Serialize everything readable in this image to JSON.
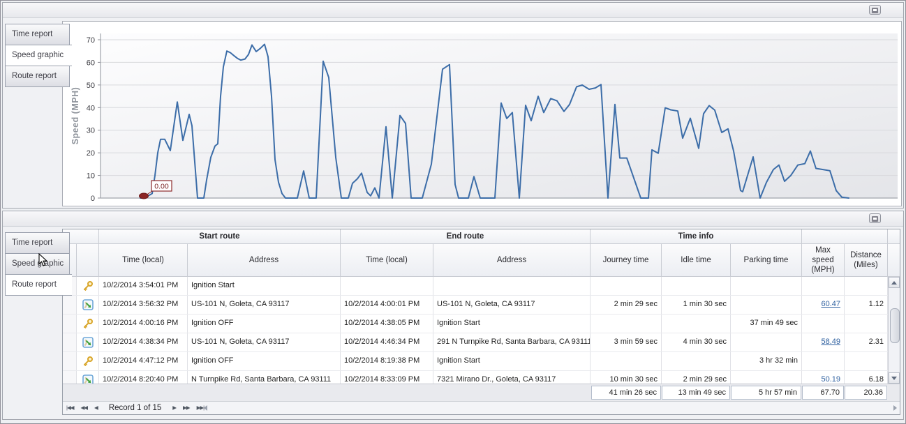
{
  "tabs": [
    "Time report",
    "Speed graphic",
    "Route report"
  ],
  "top_panel": {
    "active_tab": "Speed graphic"
  },
  "bottom_panel": {
    "active_tab": "Route report"
  },
  "panel_button_color": "#82828c",
  "chart_data": {
    "type": "line",
    "title": "",
    "ylabel": "Speed (MPH)",
    "xlabel": "",
    "yticks": [
      0,
      10,
      20,
      30,
      40,
      50,
      60,
      70
    ],
    "ylim": [
      0,
      72
    ],
    "grid": "horizontal",
    "legend": "none",
    "line_color": "#3c6da8",
    "x_unit": "screen px along time axis (plot spans 143-1290)",
    "annotation": {
      "text": "0.00",
      "color": "#7a2222",
      "border": "#8b2a2a",
      "marker_color": "#8b2525"
    },
    "points": [
      [
        200,
        0
      ],
      [
        206,
        0
      ],
      [
        217,
        2
      ],
      [
        221,
        10
      ],
      [
        225,
        20
      ],
      [
        229,
        26
      ],
      [
        235,
        26
      ],
      [
        243,
        21
      ],
      [
        253,
        42.5
      ],
      [
        261,
        25.5
      ],
      [
        270,
        37
      ],
      [
        274,
        32
      ],
      [
        282,
        0
      ],
      [
        291,
        0
      ],
      [
        295,
        8
      ],
      [
        301,
        18
      ],
      [
        307,
        23
      ],
      [
        311,
        24
      ],
      [
        315,
        45
      ],
      [
        319,
        58
      ],
      [
        324,
        65
      ],
      [
        329,
        64.3
      ],
      [
        334,
        63
      ],
      [
        339,
        61.8
      ],
      [
        344,
        61
      ],
      [
        350,
        61.5
      ],
      [
        355,
        63.5
      ],
      [
        360,
        67.7
      ],
      [
        366,
        64.8
      ],
      [
        372,
        66.2
      ],
      [
        378,
        68
      ],
      [
        383,
        62.5
      ],
      [
        388,
        45
      ],
      [
        393,
        17
      ],
      [
        398,
        7
      ],
      [
        403,
        2
      ],
      [
        408,
        0
      ],
      [
        425,
        0
      ],
      [
        434,
        12
      ],
      [
        442,
        0
      ],
      [
        452,
        0
      ],
      [
        462,
        60.5
      ],
      [
        470,
        53.3
      ],
      [
        480,
        18
      ],
      [
        488,
        0
      ],
      [
        498,
        0
      ],
      [
        504,
        6.5
      ],
      [
        511,
        8.5
      ],
      [
        517,
        11
      ],
      [
        525,
        2.5
      ],
      [
        530,
        1
      ],
      [
        536,
        4.5
      ],
      [
        542,
        0
      ],
      [
        552,
        31.5
      ],
      [
        561,
        0
      ],
      [
        572,
        36.5
      ],
      [
        580,
        33
      ],
      [
        588,
        0
      ],
      [
        604,
        0
      ],
      [
        617,
        15
      ],
      [
        633,
        57
      ],
      [
        643,
        59
      ],
      [
        651,
        6
      ],
      [
        656,
        0
      ],
      [
        670,
        0
      ],
      [
        678,
        9.5
      ],
      [
        687,
        0
      ],
      [
        708,
        0
      ],
      [
        717,
        42
      ],
      [
        725,
        35.2
      ],
      [
        733,
        37.8
      ],
      [
        743,
        0
      ],
      [
        752,
        41
      ],
      [
        760,
        34.2
      ],
      [
        770,
        45
      ],
      [
        778,
        37.8
      ],
      [
        788,
        44
      ],
      [
        797,
        43
      ],
      [
        807,
        38.3
      ],
      [
        815,
        41.4
      ],
      [
        825,
        49.2
      ],
      [
        833,
        50
      ],
      [
        843,
        48.1
      ],
      [
        852,
        48.7
      ],
      [
        860,
        50.2
      ],
      [
        870,
        0
      ],
      [
        880,
        41.4
      ],
      [
        887,
        17.7
      ],
      [
        897,
        17.7
      ],
      [
        917,
        0
      ],
      [
        928,
        0
      ],
      [
        933,
        21.3
      ],
      [
        942,
        19.8
      ],
      [
        952,
        39.9
      ],
      [
        960,
        39
      ],
      [
        970,
        38.5
      ],
      [
        977,
        26.5
      ],
      [
        988,
        35.3
      ],
      [
        1000,
        22
      ],
      [
        1007,
        37.3
      ],
      [
        1015,
        40.9
      ],
      [
        1023,
        38.9
      ],
      [
        1033,
        29
      ],
      [
        1042,
        30.6
      ],
      [
        1050,
        20.8
      ],
      [
        1060,
        3.3
      ],
      [
        1063,
        2.8
      ],
      [
        1078,
        18.2
      ],
      [
        1088,
        0
      ],
      [
        1097,
        6.9
      ],
      [
        1107,
        12.6
      ],
      [
        1115,
        14.6
      ],
      [
        1123,
        7.4
      ],
      [
        1132,
        10
      ],
      [
        1142,
        14.6
      ],
      [
        1152,
        15.2
      ],
      [
        1160,
        20.8
      ],
      [
        1168,
        13.1
      ],
      [
        1178,
        12.6
      ],
      [
        1188,
        12.1
      ],
      [
        1197,
        3.3
      ],
      [
        1205,
        0.4
      ],
      [
        1215,
        0
      ]
    ]
  },
  "grid": {
    "column_groups": [
      {
        "label": ""
      },
      {
        "label": "Start route"
      },
      {
        "label": "End route"
      },
      {
        "label": "Time info"
      },
      {
        "label": ""
      }
    ],
    "columns": [
      {
        "label": ""
      },
      {
        "label": ""
      },
      {
        "label": "Time (local)"
      },
      {
        "label": "Address"
      },
      {
        "label": "Time (local)"
      },
      {
        "label": "Address"
      },
      {
        "label": "Journey time"
      },
      {
        "label": "Idle time"
      },
      {
        "label": "Parking time"
      },
      {
        "label": "Max speed (MPH)"
      },
      {
        "label": "Distance (Miles)"
      }
    ],
    "rows": [
      {
        "icon": "key-icon",
        "start_time": "10/2/2014 3:54:01 PM",
        "start_address": "Ignition Start",
        "end_time": "",
        "end_address": "",
        "journey_time": "",
        "idle_time": "",
        "parking_time": "",
        "max_speed": "",
        "distance": ""
      },
      {
        "icon": "route-icon",
        "start_time": "10/2/2014 3:56:32 PM",
        "start_address": "US-101 N, Goleta, CA 93117",
        "end_time": "10/2/2014 4:00:01 PM",
        "end_address": "US-101 N, Goleta, CA 93117",
        "journey_time": "2 min 29 sec",
        "idle_time": "1 min 30 sec",
        "parking_time": "",
        "max_speed": "60.47",
        "distance": "1.12"
      },
      {
        "icon": "key-icon",
        "start_time": "10/2/2014 4:00:16 PM",
        "start_address": "Ignition OFF",
        "end_time": "10/2/2014 4:38:05 PM",
        "end_address": "Ignition Start",
        "journey_time": "",
        "idle_time": "",
        "parking_time": "37 min 49 sec",
        "max_speed": "",
        "distance": ""
      },
      {
        "icon": "route-icon",
        "start_time": "10/2/2014 4:38:34 PM",
        "start_address": "US-101 N, Goleta, CA 93117",
        "end_time": "10/2/2014 4:46:34 PM",
        "end_address": "291 N Turnpike Rd, Santa Barbara, CA 93111",
        "journey_time": "3 min 59 sec",
        "idle_time": "4 min 30 sec",
        "parking_time": "",
        "max_speed": "58.49",
        "distance": "2.31"
      },
      {
        "icon": "key-icon",
        "start_time": "10/2/2014 4:47:12 PM",
        "start_address": "Ignition OFF",
        "end_time": "10/2/2014 8:19:38 PM",
        "end_address": "Ignition Start",
        "journey_time": "",
        "idle_time": "",
        "parking_time": "3 hr 32 min",
        "max_speed": "",
        "distance": ""
      },
      {
        "icon": "route-icon",
        "start_time": "10/2/2014 8:20:40 PM",
        "start_address": "N Turnpike Rd, Santa Barbara, CA 93111",
        "end_time": "10/2/2014 8:33:09 PM",
        "end_address": "7321 Mirano Dr., Goleta, CA 93117",
        "journey_time": "10 min 30 sec",
        "idle_time": "2 min 29 sec",
        "parking_time": "",
        "max_speed": "50.19",
        "distance": "6.18"
      }
    ],
    "summary": {
      "journey_time": "41 min 26 sec",
      "idle_time": "13 min 49 sec",
      "parking_time": "5 hr 57 min",
      "max_speed": "67.70",
      "distance": "20.36"
    },
    "navigator": {
      "label": "Record 1 of 15",
      "glyphs": {
        "first": "|◀◀",
        "prev_page": "◀◀",
        "prev": "◀",
        "next": "▶",
        "next_page": "▶▶",
        "last": "▶▶|"
      }
    }
  }
}
